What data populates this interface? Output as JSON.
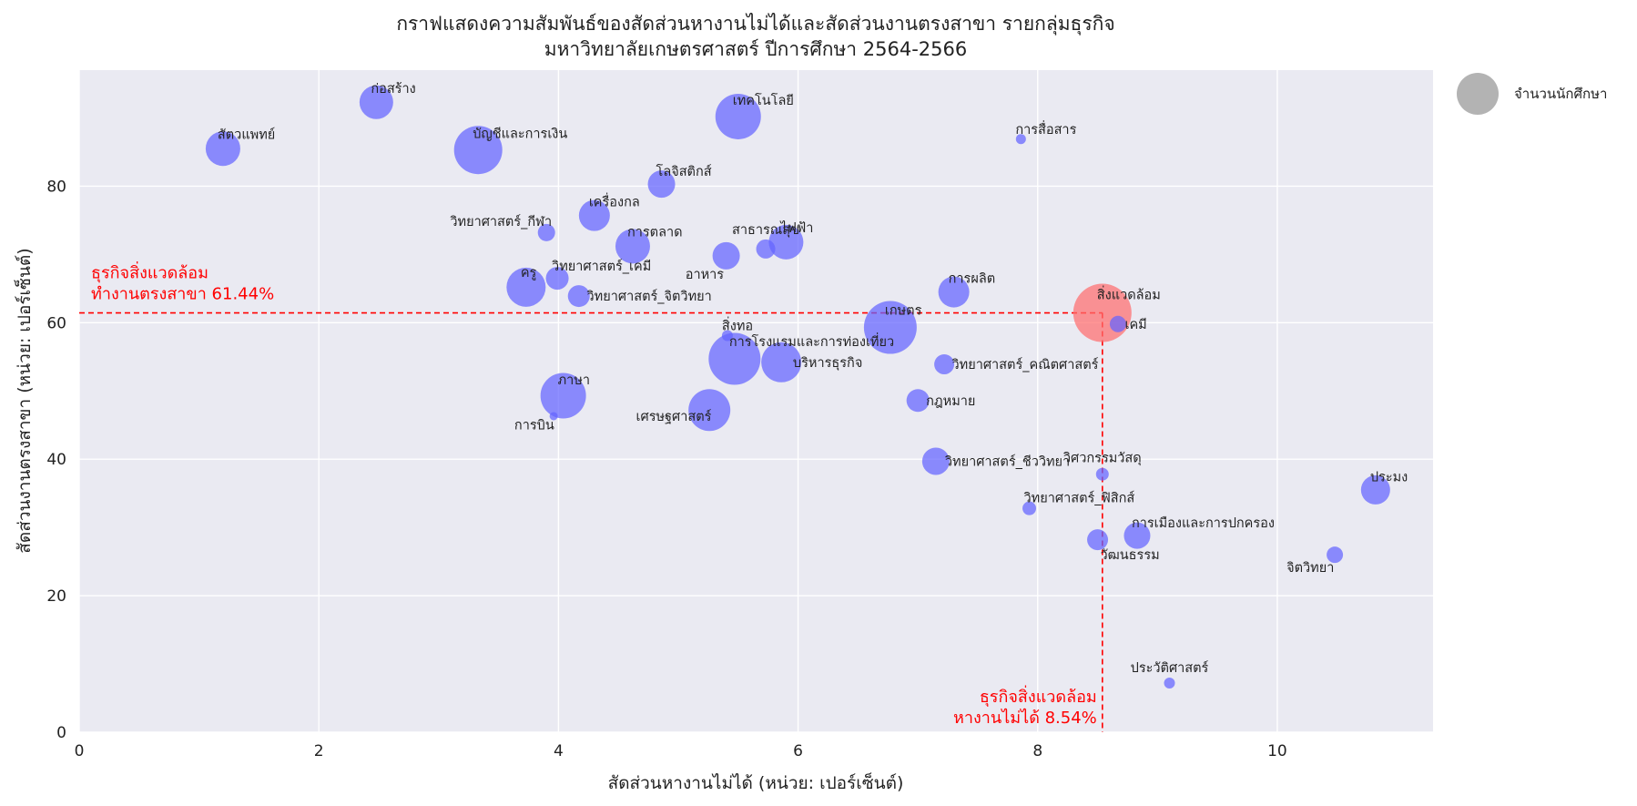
{
  "chart_data": {
    "type": "scatter",
    "title_lines": [
      "กราฟแสดงความสัมพันธ์ของสัดส่วนหางานไม่ได้และสัดส่วนงานตรงสาขา รายกลุ่มธุรกิจ",
      "มหาวิทยาลัยเกษตรศาสตร์ ปีการศึกษา 2564-2566"
    ],
    "xlabel": "สัดส่วนหางานไม่ได้ (หน่วย: เปอร์เซ็นต์)",
    "ylabel": "สัดส่วนงานตรงสาขา (หน่วย: เปอร์เซ็นต์)",
    "xlim": [
      0,
      11.3
    ],
    "ylim": [
      0,
      97
    ],
    "xticks": [
      0,
      2,
      4,
      6,
      8,
      10
    ],
    "yticks": [
      0,
      20,
      40,
      60,
      80
    ],
    "grid": true,
    "point_color": "#6464ff",
    "highlight_color": "#ff6e6e",
    "ref_color": "#ff0000",
    "legend": {
      "label": "จำนวนนักศึกษา",
      "placement": "outside-top-right",
      "color": "#a0a0a0"
    },
    "reference_lines": {
      "x_value": 8.54,
      "y_value": 61.44,
      "y_text": [
        "ธุรกิจสิ่งแวดล้อม",
        "ทำงานตรงสาขา 61.44%"
      ],
      "x_text": [
        "ธุรกิจสิ่งแวดล้อม",
        "หางานไม่ได้ 8.54%"
      ]
    },
    "points": [
      {
        "label": "สัตวแพทย์",
        "x": 1.2,
        "y": 85.5,
        "size": 38,
        "label_pos": "ne"
      },
      {
        "label": "ก่อสร้าง",
        "x": 2.48,
        "y": 92.3,
        "size": 37,
        "label_pos": "ne"
      },
      {
        "label": "บัญชีและการเงิน",
        "x": 3.33,
        "y": 85.3,
        "size": 53,
        "label_pos": "ne"
      },
      {
        "label": "เทคโนโลยี",
        "x": 5.5,
        "y": 90.2,
        "size": 50,
        "label_pos": "ne"
      },
      {
        "label": "การสื่อสาร",
        "x": 7.86,
        "y": 86.9,
        "size": 11,
        "label_pos": "ne"
      },
      {
        "label": "โลจิสติกส์",
        "x": 4.86,
        "y": 80.3,
        "size": 30,
        "label_pos": "ne"
      },
      {
        "label": "เครื่องกล",
        "x": 4.3,
        "y": 75.7,
        "size": 34,
        "label_pos": "ne"
      },
      {
        "label": "วิทยาศาสตร์_กีฬา",
        "x": 3.9,
        "y": 73.2,
        "size": 19,
        "label_pos": "nw"
      },
      {
        "label": "การตลาด",
        "x": 4.62,
        "y": 71.2,
        "size": 38,
        "label_pos": "ne"
      },
      {
        "label": "สาธารณสุข",
        "x": 5.73,
        "y": 70.8,
        "size": 21,
        "label_pos": "n"
      },
      {
        "label": "ไฟฟ้า",
        "x": 5.9,
        "y": 71.8,
        "size": 38,
        "label_pos": "ne"
      },
      {
        "label": "อาหาร",
        "x": 5.4,
        "y": 69.8,
        "size": 30,
        "label_pos": "sw"
      },
      {
        "label": "วิทยาศาสตร์_เคมี",
        "x": 3.99,
        "y": 66.5,
        "size": 25,
        "label_pos": "ne"
      },
      {
        "label": "ครู",
        "x": 3.73,
        "y": 65.2,
        "size": 43,
        "label_pos": "ne"
      },
      {
        "label": "วิทยาศาสตร์_จิตวิทยา",
        "x": 4.17,
        "y": 63.9,
        "size": 24,
        "label_pos": "e"
      },
      {
        "label": "การผลิต",
        "x": 7.3,
        "y": 64.5,
        "size": 34,
        "label_pos": "ne"
      },
      {
        "label": "สิ่งทอ",
        "x": 5.41,
        "y": 58.1,
        "size": 12,
        "label_pos": "ne"
      },
      {
        "label": "เกษตร",
        "x": 6.77,
        "y": 59.3,
        "size": 58,
        "label_pos": "ne"
      },
      {
        "label": "สิ่งแวดล้อม",
        "x": 8.54,
        "y": 61.44,
        "size": 64,
        "highlight": true,
        "label_pos": "ne"
      },
      {
        "label": "เคมี",
        "x": 8.67,
        "y": 59.8,
        "size": 18,
        "label_pos": "e"
      },
      {
        "label": "การโรงแรมและการท่องเที่ยว",
        "x": 5.47,
        "y": 54.7,
        "size": 57,
        "label_pos": "ne"
      },
      {
        "label": "บริหารธุรกิจ",
        "x": 5.86,
        "y": 54.2,
        "size": 44,
        "label_pos": "e"
      },
      {
        "label": "วิทยาศาสตร์_คณิตศาสตร์",
        "x": 7.22,
        "y": 53.9,
        "size": 22,
        "label_pos": "e"
      },
      {
        "label": "ภาษา",
        "x": 4.04,
        "y": 49.3,
        "size": 50,
        "label_pos": "ne"
      },
      {
        "label": "การบิน",
        "x": 3.96,
        "y": 46.3,
        "size": 9,
        "label_pos": "sw"
      },
      {
        "label": "เศรษฐศาสตร์",
        "x": 5.26,
        "y": 47.2,
        "size": 46,
        "label_pos": "w"
      },
      {
        "label": "กฎหมาย",
        "x": 7.0,
        "y": 48.6,
        "size": 25,
        "label_pos": "e"
      },
      {
        "label": "วิทยาศาสตร์_ชีววิทยา",
        "x": 7.15,
        "y": 39.7,
        "size": 30,
        "label_pos": "e"
      },
      {
        "label": "วิศวกรรมวัสดุ",
        "x": 8.54,
        "y": 37.8,
        "size": 14,
        "label_pos": "n"
      },
      {
        "label": "ประมง",
        "x": 10.82,
        "y": 35.5,
        "size": 32,
        "label_pos": "ne"
      },
      {
        "label": "วิทยาศาสตร์_ฟิสิกส์",
        "x": 7.93,
        "y": 32.8,
        "size": 15,
        "label_pos": "ne"
      },
      {
        "label": "การเมืองและการปกครอง",
        "x": 8.83,
        "y": 28.8,
        "size": 29,
        "label_pos": "ne"
      },
      {
        "label": "วัฒนธรรม",
        "x": 8.5,
        "y": 28.2,
        "size": 23,
        "label_pos": "se"
      },
      {
        "label": "จิตวิทยา",
        "x": 10.48,
        "y": 26.0,
        "size": 18,
        "label_pos": "sw"
      },
      {
        "label": "ประวัติศาสตร์",
        "x": 9.1,
        "y": 7.2,
        "size": 12,
        "label_pos": "n"
      }
    ]
  }
}
